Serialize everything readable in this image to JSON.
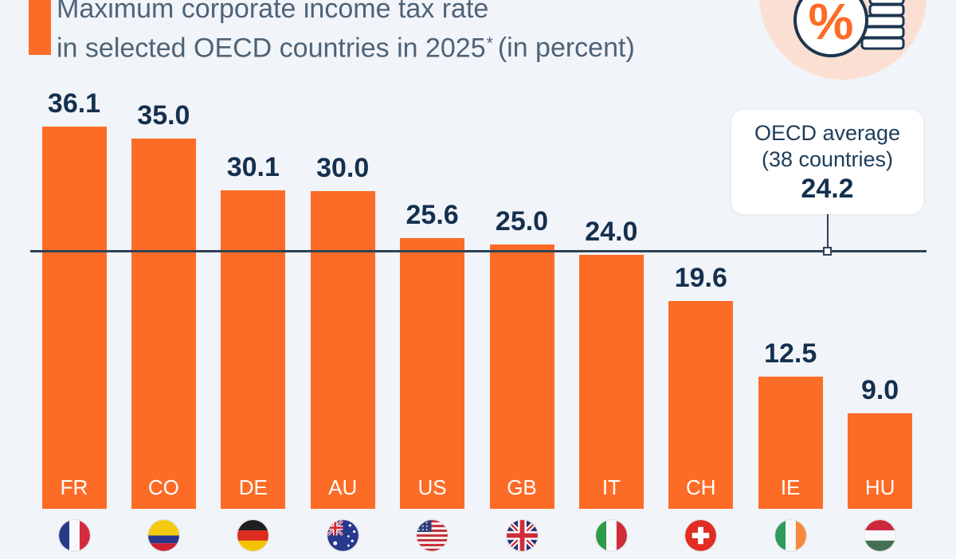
{
  "header": {
    "title_line1": "Maximum corporate income tax rate",
    "title_line2": "in selected OECD countries in 2025",
    "title_footnote_marker": "*",
    "title_suffix": "(in percent)"
  },
  "icon": {
    "name": "percent-coins-icon",
    "percent_symbol": "%"
  },
  "annotation": {
    "line1": "OECD average",
    "line2": "(38 countries)",
    "value": "24.2"
  },
  "colors": {
    "background": "#f1f4f9",
    "bar_orange": "#fd6c26",
    "value_navy": "#15304e",
    "title_bluegray": "#4e6377",
    "average_line": "#2d4256",
    "icon_peach": "#fbdfd2",
    "callout_background": "#ffffff"
  },
  "chart_data": {
    "type": "bar",
    "title": "Maximum corporate income tax rate in selected OECD countries in 2025* (in percent)",
    "categories": [
      "FR",
      "CO",
      "DE",
      "AU",
      "US",
      "GB",
      "IT",
      "CH",
      "IE",
      "HU"
    ],
    "values": [
      36.1,
      35.0,
      30.1,
      30.0,
      25.6,
      25.0,
      24.0,
      19.6,
      12.5,
      9.0
    ],
    "value_labels": [
      "36.1",
      "35.0",
      "30.1",
      "30.0",
      "25.6",
      "25.0",
      "24.0",
      "19.6",
      "12.5",
      "9.0"
    ],
    "flag_icons": [
      "france-flag-icon",
      "colombia-flag-icon",
      "germany-flag-icon",
      "australia-flag-icon",
      "united-states-flag-icon",
      "united-kingdom-flag-icon",
      "italy-flag-icon",
      "switzerland-flag-icon",
      "ireland-flag-icon",
      "hungary-flag-icon"
    ],
    "reference_line": {
      "label": "OECD average (38 countries)",
      "value": 24.2
    },
    "ylabel": "",
    "xlabel": "",
    "ylim": [
      0,
      40
    ],
    "grid": false,
    "legend": false,
    "bar_color": "#fd6c26"
  }
}
